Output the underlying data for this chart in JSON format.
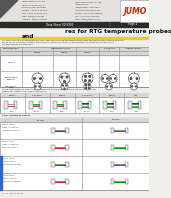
{
  "bg_color": "#f0eeeb",
  "header_gray": "#d8d6d2",
  "dark_bar_color": "#3a3a3a",
  "title_line1": "res for RTG temperature probes",
  "title_line2": "and",
  "jumo_red": "#cc2200",
  "jumo_border": "#888888",
  "table1_col_headers": [
    "Characteristics",
    "Measuring circuit",
    "",
    "",
    "0.375 Tab",
    "Thermocouple output"
  ],
  "table1_subcols": [
    "2-wire",
    "3-wire",
    "4-wire"
  ],
  "table1_rows": [
    "Pt 100",
    "Temperature element",
    "Connection head"
  ],
  "section2_text": "Wiring of the extension conductors in 2-wire circuit with RTD temperature probe (as the wire at the",
  "section2_text2": "measuring junction is in the measuring circuit)",
  "table2_cols": [
    "2-wire",
    "2+1 wire",
    "3-wire",
    "3+1 wire",
    "4-wire",
    "3+1"
  ],
  "section3_text": "Color coding of cables",
  "table3_left_col": "Pt 100",
  "table3_right_col": "Ni 100",
  "table3_rows": [
    [
      "Pt100, Ni100",
      "Class A conductor",
      "(standard version)"
    ],
    [
      "Pt100, Ni100",
      "Class A conductor",
      "VDE 0470 part 1"
    ],
    [
      "Pt100, Ni100",
      "with mounting",
      "termination (option)"
    ],
    [
      "Pt100, Ni100",
      "with mounting",
      "termination (option)"
    ]
  ],
  "footer": "07.11 /2300005370"
}
